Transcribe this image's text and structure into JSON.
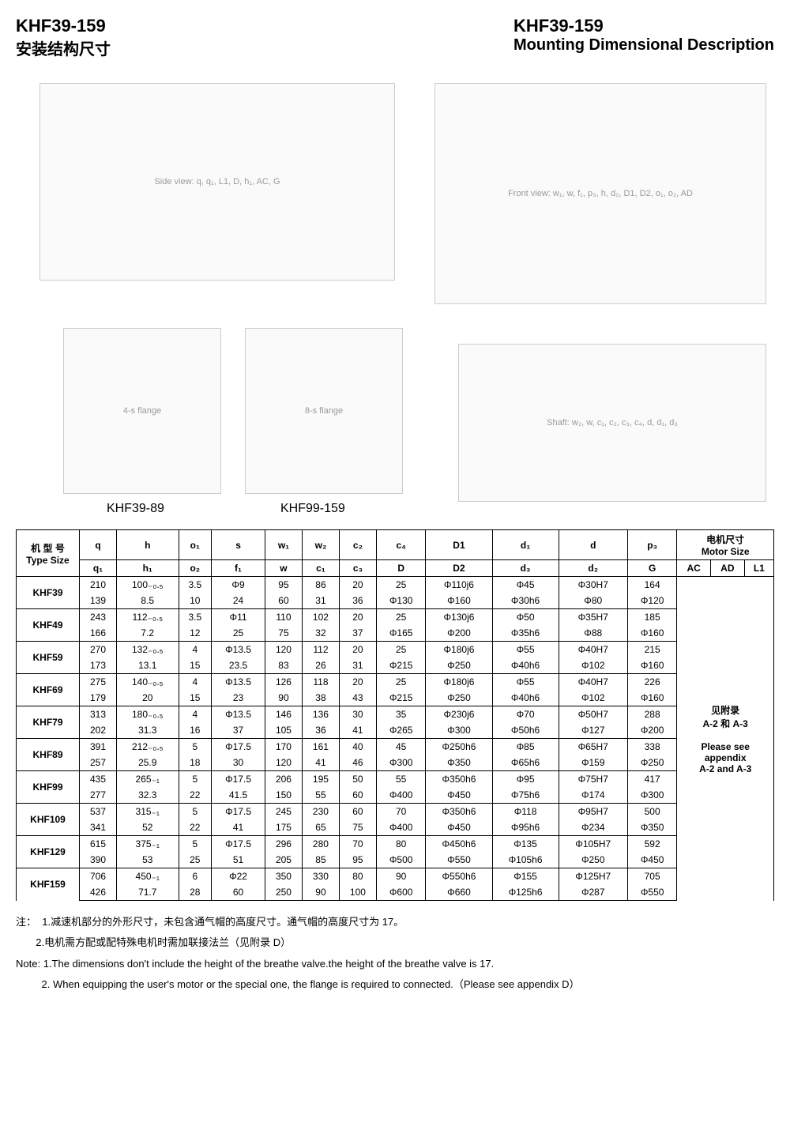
{
  "header": {
    "left_title": "KHF39-159",
    "left_subtitle": "安装结构尺寸",
    "right_title": "KHF39-159",
    "right_subtitle": "Mounting Dimensional Description"
  },
  "diagram_labels": {
    "flange1": "KHF39-89",
    "flange2": "KHF99-159",
    "dims_top_left": "Side view: q, q₁, L1, D, h₁, AC, G",
    "dims_top_right": "Front view: w₁, w, f₁, p₃, h, d₂, D1, D2, o₁, o₂, AD",
    "dims_bot_l": "4-s flange",
    "dims_bot_m": "8-s flange",
    "dims_bot_r": "Shaft: w₂, w, c₁, c₂, c₃, c₄, d, d₁, d₃"
  },
  "table": {
    "headers": {
      "type": "机 型 号\nType Size",
      "q": "q",
      "q1": "q₁",
      "h": "h",
      "h1": "h₁",
      "o1": "o₁",
      "o2": "o₂",
      "s": "s",
      "f1": "f₁",
      "w1": "w₁",
      "w": "w",
      "w2": "w₂",
      "c1": "c₁",
      "c2": "c₂",
      "c3": "c₃",
      "c4": "c₄",
      "D": "D",
      "D1": "D1",
      "D2": "D2",
      "d1": "d₁",
      "d3": "d₃",
      "d": "d",
      "d2": "d₂",
      "p3": "p₃",
      "G": "G",
      "motor": "电机尺寸\nMotor Size",
      "AC": "AC",
      "AD": "AD",
      "L1": "L1"
    },
    "motor_note": "见附录\nA-2 和 A-3\n\nPlease see\nappendix\nA-2 and A-3",
    "rows": [
      {
        "type": "KHF39",
        "r1": [
          "210",
          "100₋₀.₅",
          "3.5",
          "Φ9",
          "95",
          "86",
          "20",
          "25",
          "Φ110j6",
          "Φ45",
          "Φ30H7",
          "164"
        ],
        "r2": [
          "139",
          "8.5",
          "10",
          "24",
          "60",
          "31",
          "36",
          "Φ130",
          "Φ160",
          "Φ30h6",
          "Φ80",
          "Φ120"
        ]
      },
      {
        "type": "KHF49",
        "r1": [
          "243",
          "112₋₀.₅",
          "3.5",
          "Φ11",
          "110",
          "102",
          "20",
          "25",
          "Φ130j6",
          "Φ50",
          "Φ35H7",
          "185"
        ],
        "r2": [
          "166",
          "7.2",
          "12",
          "25",
          "75",
          "32",
          "37",
          "Φ165",
          "Φ200",
          "Φ35h6",
          "Φ88",
          "Φ160"
        ]
      },
      {
        "type": "KHF59",
        "r1": [
          "270",
          "132₋₀.₅",
          "4",
          "Φ13.5",
          "120",
          "112",
          "20",
          "25",
          "Φ180j6",
          "Φ55",
          "Φ40H7",
          "215"
        ],
        "r2": [
          "173",
          "13.1",
          "15",
          "23.5",
          "83",
          "26",
          "31",
          "Φ215",
          "Φ250",
          "Φ40h6",
          "Φ102",
          "Φ160"
        ]
      },
      {
        "type": "KHF69",
        "r1": [
          "275",
          "140₋₀.₅",
          "4",
          "Φ13.5",
          "126",
          "118",
          "20",
          "25",
          "Φ180j6",
          "Φ55",
          "Φ40H7",
          "226"
        ],
        "r2": [
          "179",
          "20",
          "15",
          "23",
          "90",
          "38",
          "43",
          "Φ215",
          "Φ250",
          "Φ40h6",
          "Φ102",
          "Φ160"
        ]
      },
      {
        "type": "KHF79",
        "r1": [
          "313",
          "180₋₀.₅",
          "4",
          "Φ13.5",
          "146",
          "136",
          "30",
          "35",
          "Φ230j6",
          "Φ70",
          "Φ50H7",
          "288"
        ],
        "r2": [
          "202",
          "31.3",
          "16",
          "37",
          "105",
          "36",
          "41",
          "Φ265",
          "Φ300",
          "Φ50h6",
          "Φ127",
          "Φ200"
        ]
      },
      {
        "type": "KHF89",
        "r1": [
          "391",
          "212₋₀.₅",
          "5",
          "Φ17.5",
          "170",
          "161",
          "40",
          "45",
          "Φ250h6",
          "Φ85",
          "Φ65H7",
          "338"
        ],
        "r2": [
          "257",
          "25.9",
          "18",
          "30",
          "120",
          "41",
          "46",
          "Φ300",
          "Φ350",
          "Φ65h6",
          "Φ159",
          "Φ250"
        ]
      },
      {
        "type": "KHF99",
        "r1": [
          "435",
          "265₋₁",
          "5",
          "Φ17.5",
          "206",
          "195",
          "50",
          "55",
          "Φ350h6",
          "Φ95",
          "Φ75H7",
          "417"
        ],
        "r2": [
          "277",
          "32.3",
          "22",
          "41.5",
          "150",
          "55",
          "60",
          "Φ400",
          "Φ450",
          "Φ75h6",
          "Φ174",
          "Φ300"
        ]
      },
      {
        "type": "KHF109",
        "r1": [
          "537",
          "315₋₁",
          "5",
          "Φ17.5",
          "245",
          "230",
          "60",
          "70",
          "Φ350h6",
          "Φ118",
          "Φ95H7",
          "500"
        ],
        "r2": [
          "341",
          "52",
          "22",
          "41",
          "175",
          "65",
          "75",
          "Φ400",
          "Φ450",
          "Φ95h6",
          "Φ234",
          "Φ350"
        ]
      },
      {
        "type": "KHF129",
        "r1": [
          "615",
          "375₋₁",
          "5",
          "Φ17.5",
          "296",
          "280",
          "70",
          "80",
          "Φ450h6",
          "Φ135",
          "Φ105H7",
          "592"
        ],
        "r2": [
          "390",
          "53",
          "25",
          "51",
          "205",
          "85",
          "95",
          "Φ500",
          "Φ550",
          "Φ105h6",
          "Φ250",
          "Φ450"
        ]
      },
      {
        "type": "KHF159",
        "r1": [
          "706",
          "450₋₁",
          "6",
          "Φ22",
          "350",
          "330",
          "80",
          "90",
          "Φ550h6",
          "Φ155",
          "Φ125H7",
          "705"
        ],
        "r2": [
          "426",
          "71.7",
          "28",
          "60",
          "250",
          "90",
          "100",
          "Φ600",
          "Φ660",
          "Φ125h6",
          "Φ287",
          "Φ550"
        ]
      }
    ]
  },
  "notes": {
    "zh_label": "注：",
    "zh1": "1.减速机部分的外形尺寸，未包含通气帽的高度尺寸。通气帽的高度尺寸为 17。",
    "zh2": "2.电机需方配或配特殊电机时需加联接法兰（见附录 D）",
    "en_label": "Note:",
    "en1": "1.The dimensions don't include the height of the breathe valve.the height of the breathe valve is 17.",
    "en2": "2. When equipping the user's motor or the special one, the flange is required to connected.（Please see appendix D）"
  }
}
